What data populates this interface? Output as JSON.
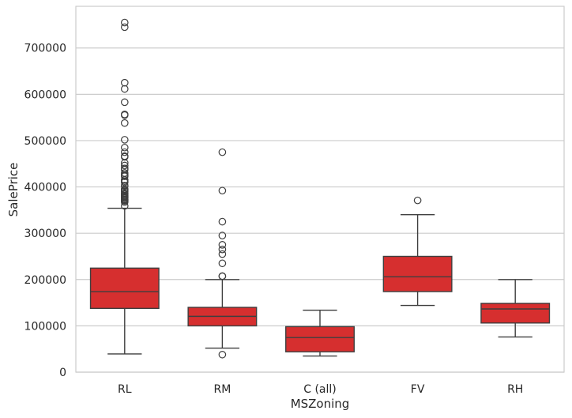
{
  "chart_data": {
    "type": "boxplot",
    "title": "",
    "xlabel": "MSZoning",
    "ylabel": "SalePrice",
    "ylim": [
      0,
      790000
    ],
    "yticks": [
      0,
      100000,
      200000,
      300000,
      400000,
      500000,
      600000,
      700000
    ],
    "grid": true,
    "box_color": "#d62f2f",
    "categories": [
      "RL",
      "RM",
      "C (all)",
      "FV",
      "RH"
    ],
    "boxes": [
      {
        "category": "RL",
        "whisker_low": 39300,
        "q1": 137700,
        "median": 174000,
        "q3": 224700,
        "whisker_high": 354000,
        "outliers": [
          755000,
          745000,
          625000,
          611657,
          582933,
          556581,
          555000,
          538000,
          501837,
          485000,
          475000,
          466500,
          465000,
          451950,
          446261,
          440000,
          437154,
          430000,
          426000,
          424870,
          423000,
          415298,
          412500,
          410000,
          402861,
          402000,
          395192,
          394617,
          392500,
          392000,
          390000,
          386250,
          385000,
          383970,
          381000,
          380000,
          378500,
          377500,
          377426,
          375000,
          372500,
          372402,
          370878,
          369900,
          367294,
          359100
        ]
      },
      {
        "category": "RM",
        "whisker_low": 52000,
        "q1": 100000,
        "median": 120500,
        "q3": 140000,
        "whisker_high": 200000,
        "outliers": [
          37900,
          475000,
          392000,
          325000,
          295000,
          275000,
          265000,
          255000,
          235000,
          207500,
          207000
        ]
      },
      {
        "category": "C (all)",
        "whisker_low": 34900,
        "q1": 43998,
        "median": 74700,
        "q3": 98332,
        "whisker_high": 133900,
        "outliers": []
      },
      {
        "category": "FV",
        "whisker_low": 144152,
        "q1": 174000,
        "median": 205950,
        "q3": 250000,
        "whisker_high": 340000,
        "outliers": [
          370878
        ]
      },
      {
        "category": "RH",
        "whisker_low": 76000,
        "q1": 106150,
        "median": 136500,
        "q3": 148608,
        "whisker_high": 200000,
        "outliers": []
      }
    ]
  }
}
